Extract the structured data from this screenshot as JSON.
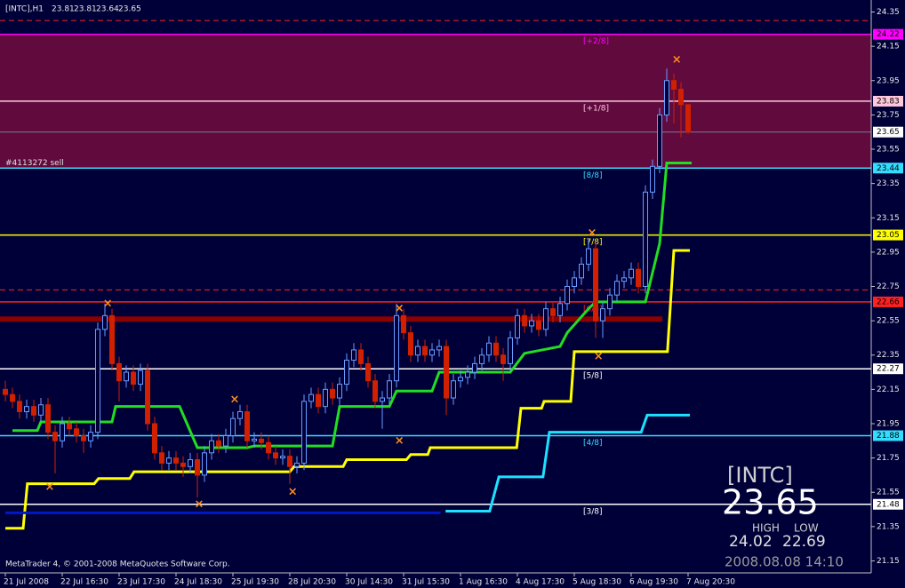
{
  "chart_data": {
    "type": "candlestick",
    "title": "[INTC],H1",
    "footer": "MetaTrader 4, © 2001-2008 MetaQuotes Software Corp.",
    "categories": [
      "21 Jul 2008",
      null,
      null,
      null,
      null,
      null,
      null,
      null,
      "22 Jul 16:30",
      null,
      null,
      null,
      null,
      null,
      null,
      null,
      "23 Jul 17:30",
      null,
      null,
      null,
      null,
      null,
      null,
      null,
      "24 Jul 18:30",
      null,
      null,
      null,
      null,
      null,
      null,
      null,
      "25 Jul 19:30",
      null,
      null,
      null,
      null,
      null,
      null,
      null,
      "28 Jul 20:30",
      null,
      null,
      null,
      null,
      null,
      null,
      null,
      "30 Jul 14:30",
      null,
      null,
      null,
      null,
      null,
      null,
      null,
      "31 Jul 15:30",
      null,
      null,
      null,
      null,
      null,
      null,
      null,
      "1 Aug 16:30",
      null,
      null,
      null,
      null,
      null,
      null,
      null,
      "4 Aug 17:30",
      null,
      null,
      null,
      null,
      null,
      null,
      null,
      "5 Aug 18:30",
      null,
      null,
      null,
      null,
      null,
      null,
      null,
      "6 Aug 19:30",
      null,
      null,
      null,
      null,
      null,
      null,
      null,
      "7 Aug 20:30"
    ],
    "open": [
      22.15,
      22.12,
      22.08,
      22.02,
      22.05,
      22.0,
      22.06,
      21.9,
      21.85,
      21.95,
      21.92,
      21.88,
      21.85,
      21.9,
      22.5,
      22.58,
      22.3,
      22.2,
      22.25,
      22.18,
      22.26,
      21.95,
      21.78,
      21.72,
      21.75,
      21.72,
      21.7,
      21.74,
      21.65,
      21.78,
      21.85,
      21.82,
      21.88,
      21.98,
      22.02,
      21.85,
      21.86,
      21.84,
      21.78,
      21.75,
      21.76,
      21.7,
      21.72,
      22.08,
      22.12,
      22.05,
      22.15,
      22.1,
      22.18,
      22.32,
      22.38,
      22.3,
      22.2,
      22.08,
      22.1,
      22.2,
      22.58,
      22.48,
      22.35,
      22.4,
      22.35,
      22.38,
      22.4,
      22.1,
      22.2,
      22.22,
      22.25,
      22.3,
      22.35,
      22.42,
      22.35,
      22.3,
      22.45,
      22.58,
      22.52,
      22.55,
      22.5,
      22.62,
      22.58,
      22.65,
      22.75,
      22.8,
      22.88,
      22.97,
      22.55,
      22.62,
      22.7,
      22.78,
      22.8,
      22.85,
      22.75,
      23.3,
      23.45,
      23.75,
      23.95,
      23.9,
      23.81
    ],
    "high": [
      22.2,
      22.16,
      22.12,
      22.09,
      22.09,
      22.1,
      22.1,
      21.94,
      21.99,
      21.99,
      21.96,
      21.92,
      21.94,
      22.54,
      22.65,
      22.62,
      22.34,
      22.29,
      22.29,
      22.3,
      22.3,
      21.99,
      21.82,
      21.79,
      21.79,
      21.76,
      21.78,
      21.78,
      21.82,
      21.89,
      21.89,
      21.92,
      22.02,
      22.06,
      22.06,
      21.9,
      21.9,
      21.88,
      21.82,
      21.8,
      21.8,
      21.76,
      22.12,
      22.16,
      22.16,
      22.19,
      22.19,
      22.22,
      22.36,
      22.42,
      22.42,
      22.34,
      22.24,
      22.14,
      22.24,
      22.65,
      22.62,
      22.52,
      22.44,
      22.44,
      22.42,
      22.44,
      22.44,
      22.24,
      22.26,
      22.29,
      22.34,
      22.39,
      22.46,
      22.46,
      22.39,
      22.49,
      22.62,
      22.62,
      22.59,
      22.59,
      22.66,
      22.66,
      22.69,
      22.79,
      22.84,
      22.92,
      23.03,
      23.01,
      22.66,
      22.74,
      22.82,
      22.84,
      22.89,
      22.89,
      23.34,
      23.49,
      23.79,
      24.02,
      23.99,
      23.94,
      23.81
    ],
    "low": [
      22.08,
      22.04,
      21.98,
      21.98,
      21.96,
      21.96,
      21.86,
      21.66,
      21.81,
      21.88,
      21.84,
      21.78,
      21.81,
      21.86,
      22.46,
      22.26,
      22.08,
      22.16,
      22.14,
      22.14,
      21.91,
      21.74,
      21.68,
      21.68,
      21.68,
      21.64,
      21.66,
      21.52,
      21.61,
      21.74,
      21.78,
      21.78,
      21.84,
      21.94,
      21.81,
      21.81,
      21.8,
      21.74,
      21.71,
      21.71,
      21.6,
      21.66,
      21.68,
      22.04,
      22.01,
      22.01,
      22.06,
      22.06,
      22.14,
      22.28,
      22.26,
      22.16,
      22.04,
      21.92,
      22.06,
      22.16,
      22.44,
      22.31,
      22.31,
      22.31,
      22.31,
      22.34,
      22.0,
      22.06,
      22.16,
      22.18,
      22.21,
      22.26,
      22.31,
      22.31,
      22.2,
      22.26,
      22.41,
      22.48,
      22.48,
      22.46,
      22.46,
      22.54,
      22.54,
      22.61,
      22.71,
      22.76,
      22.84,
      22.45,
      22.45,
      22.58,
      22.66,
      22.74,
      22.76,
      22.71,
      22.71,
      23.26,
      23.41,
      23.71,
      23.7,
      23.62,
      23.64
    ],
    "close": [
      22.12,
      22.08,
      22.02,
      22.05,
      22.0,
      22.06,
      21.9,
      21.85,
      21.95,
      21.92,
      21.88,
      21.85,
      21.9,
      22.5,
      22.58,
      22.3,
      22.2,
      22.25,
      22.18,
      22.26,
      21.95,
      21.78,
      21.72,
      21.75,
      21.72,
      21.7,
      21.74,
      21.65,
      21.78,
      21.85,
      21.82,
      21.88,
      21.98,
      22.02,
      21.85,
      21.86,
      21.84,
      21.78,
      21.75,
      21.76,
      21.7,
      21.72,
      22.08,
      22.12,
      22.05,
      22.15,
      22.1,
      22.18,
      22.32,
      22.38,
      22.3,
      22.2,
      22.08,
      22.1,
      22.2,
      22.58,
      22.48,
      22.35,
      22.4,
      22.35,
      22.38,
      22.4,
      22.1,
      22.2,
      22.22,
      22.25,
      22.3,
      22.35,
      22.42,
      22.35,
      22.3,
      22.45,
      22.58,
      22.52,
      22.55,
      22.5,
      22.62,
      22.58,
      22.65,
      22.75,
      22.8,
      22.88,
      22.97,
      22.55,
      22.62,
      22.7,
      22.78,
      22.8,
      22.85,
      22.75,
      23.3,
      23.45,
      23.75,
      23.95,
      23.9,
      23.81,
      23.65
    ],
    "up_color": "#6a9cff",
    "down_color": "#d02000",
    "ylim": [
      21.08,
      24.42
    ],
    "yticks": [
      24.35,
      24.15,
      23.95,
      23.75,
      23.55,
      23.35,
      23.15,
      22.95,
      22.75,
      22.55,
      22.35,
      22.15,
      21.95,
      21.75,
      21.55,
      21.35,
      21.15
    ],
    "lines": [
      {
        "color": "#22dd22",
        "x": [
          1,
          4.5,
          5,
          15,
          15.5,
          24.5,
          27,
          34,
          35,
          46,
          47,
          54,
          55,
          60,
          61,
          71,
          73,
          78,
          79,
          82,
          83,
          90,
          92,
          93,
          96.5
        ],
        "values": [
          21.91,
          21.91,
          21.96,
          21.96,
          22.05,
          22.05,
          21.81,
          21.81,
          21.82,
          21.82,
          22.05,
          22.05,
          22.14,
          22.14,
          22.25,
          22.25,
          22.36,
          22.4,
          22.48,
          22.62,
          22.66,
          22.66,
          23.0,
          23.47,
          23.47
        ]
      },
      {
        "color": "#ffff00",
        "x": [
          0,
          2.5,
          3.1,
          12.5,
          13.1,
          17.5,
          18.1,
          40,
          40.6,
          47.5,
          48,
          56.4,
          57,
          59.4,
          59.75,
          71.9,
          72.5,
          75.4,
          75.75,
          79.5,
          80,
          93.1,
          94,
          96.25
        ],
        "values": [
          21.34,
          21.34,
          21.6,
          21.6,
          21.63,
          21.63,
          21.67,
          21.67,
          21.7,
          21.7,
          21.74,
          21.74,
          21.77,
          21.77,
          21.81,
          21.81,
          22.04,
          22.04,
          22.08,
          22.08,
          22.37,
          22.37,
          22.96,
          22.96
        ]
      },
      {
        "color": "#1ee0ff",
        "x": [
          61.9,
          68.1,
          69.4,
          75.6,
          76.5,
          89.4,
          90.25,
          96.25
        ],
        "values": [
          21.44,
          21.44,
          21.64,
          21.64,
          21.9,
          21.9,
          22.0,
          22.0
        ]
      },
      {
        "color": "#0018c8",
        "x": [
          0,
          61.2
        ],
        "values": [
          21.43,
          21.43
        ]
      }
    ],
    "markers": {
      "color": "#ff8c1a",
      "x": [
        14.4,
        6.25,
        27.25,
        32.25,
        40.4,
        55.4,
        55.4,
        83.4,
        82.5,
        94.4
      ],
      "values": [
        22.65,
        21.58,
        21.48,
        22.09,
        21.55,
        22.62,
        21.85,
        22.34,
        23.06,
        24.07
      ]
    },
    "levels": [
      {
        "label": "[+2/8]",
        "value": 24.22,
        "color": "#ff00ff"
      },
      {
        "label": "[+1/8]",
        "value": 23.83,
        "color": "#ffc8dc"
      },
      {
        "label": "[8/8]",
        "value": 23.44,
        "color": "#33ddff"
      },
      {
        "label": "[7/8]",
        "value": 23.05,
        "color": "#ffff00"
      },
      {
        "label": "[6/8]",
        "value": 22.66,
        "color": "#ff2020"
      },
      {
        "label": "[5/8]",
        "value": 22.27,
        "color": "#ffffff"
      },
      {
        "label": "[4/8]",
        "value": 21.88,
        "color": "#33ddff"
      },
      {
        "label": "[3/8]",
        "value": 21.48,
        "color": "#ffffff"
      }
    ],
    "band_color": "#600a3e",
    "dashed_levels": {
      "color": "#ff2020",
      "values": [
        24.3,
        22.73
      ]
    },
    "thick_level": {
      "color": "#8b0000",
      "value": 22.56
    },
    "order": {
      "label": "#4113272 sell"
    },
    "info": {
      "symbol": "[INTC]",
      "high_label": "HIGH",
      "low_label": "LOW",
      "high": 24.02,
      "low": 22.69,
      "time": "2008.08.08 14:10"
    }
  }
}
